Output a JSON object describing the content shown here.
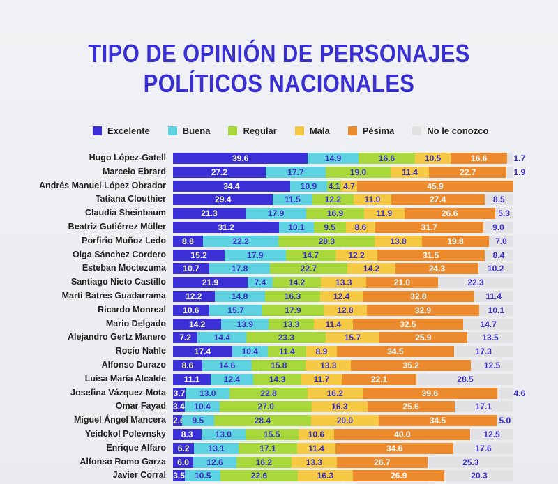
{
  "chart_data": {
    "type": "bar",
    "orientation": "horizontal-stacked-100",
    "title": [
      "TIPO DE OPINIÓN DE PERSONAJES",
      "POLÍTICOS NACIONALES"
    ],
    "legend": [
      "Excelente",
      "Buena",
      "Regular",
      "Mala",
      "Pésima",
      "No le conozco"
    ],
    "legend_position": "top",
    "colors": [
      "#3b2fd6",
      "#5fd2e2",
      "#a9d83c",
      "#f6c944",
      "#ec8a2e",
      "#e2e2e4"
    ],
    "label_colors": [
      "#ffffff",
      "#3a30c0",
      "#3a30c0",
      "#3a30c0",
      "#ffffff",
      "#3a30c0"
    ],
    "xlim": [
      0,
      100
    ],
    "categories": [
      "Hugo López-Gatell",
      "Marcelo Ebrard",
      "Andrés Manuel López Obrador",
      "Tatiana Clouthier",
      "Claudia Sheinbaum",
      "Beatriz Gutiérrez Müller",
      "Porfirio Muñoz Ledo",
      "Olga Sánchez Cordero",
      "Esteban Moctezuma",
      "Santiago Nieto Castillo",
      "Martí Batres Guadarrama",
      "Ricardo Monreal",
      "Mario Delgado",
      "Alejandro Gertz Manero",
      "Rocío Nahle",
      "Alfonso Durazo",
      "Luisa María Alcalde",
      "Josefina Vázquez Mota",
      "Omar Fayad",
      "Miguel Ángel Mancera",
      "Yeidckol Polevnsky",
      "Enrique Alfaro",
      "Alfonso Romo Garza",
      "Javier Corral"
    ],
    "values": [
      [
        39.6,
        14.9,
        16.6,
        10.5,
        16.6,
        1.7
      ],
      [
        27.2,
        17.7,
        19.0,
        11.4,
        22.7,
        1.9
      ],
      [
        34.4,
        10.9,
        4.1,
        4.7,
        45.9,
        0
      ],
      [
        29.4,
        11.5,
        12.2,
        11.0,
        27.4,
        8.5
      ],
      [
        21.3,
        17.9,
        16.9,
        11.9,
        26.6,
        5.3
      ],
      [
        31.2,
        10.1,
        9.5,
        8.6,
        31.7,
        9.0
      ],
      [
        8.8,
        22.2,
        28.3,
        13.8,
        19.8,
        7.0
      ],
      [
        15.2,
        17.9,
        14.7,
        12.2,
        31.5,
        8.4
      ],
      [
        10.7,
        17.8,
        22.7,
        14.2,
        24.3,
        10.2
      ],
      [
        21.9,
        7.4,
        14.2,
        13.3,
        21.0,
        22.3
      ],
      [
        12.2,
        14.8,
        16.3,
        12.4,
        32.8,
        11.4
      ],
      [
        10.6,
        15.7,
        17.9,
        12.8,
        32.9,
        10.1
      ],
      [
        14.2,
        13.9,
        13.3,
        11.4,
        32.5,
        14.7
      ],
      [
        7.2,
        14.4,
        23.3,
        15.7,
        25.9,
        13.5
      ],
      [
        17.4,
        10.4,
        11.4,
        8.9,
        34.5,
        17.3
      ],
      [
        8.6,
        14.6,
        15.8,
        13.3,
        35.2,
        12.5
      ],
      [
        11.1,
        12.4,
        14.3,
        11.7,
        22.1,
        28.5
      ],
      [
        3.7,
        13.0,
        22.8,
        16.2,
        39.6,
        4.6
      ],
      [
        3.4,
        10.4,
        27.0,
        16.3,
        25.6,
        17.1
      ],
      [
        2.6,
        9.5,
        28.4,
        20.0,
        34.5,
        5.0
      ],
      [
        8.3,
        13.0,
        15.5,
        10.6,
        40.0,
        12.5
      ],
      [
        6.2,
        13.1,
        17.1,
        11.4,
        34.6,
        17.6
      ],
      [
        6.0,
        12.6,
        16.2,
        13.3,
        26.7,
        25.3
      ],
      [
        3.5,
        10.5,
        22.6,
        16.3,
        26.9,
        20.3
      ]
    ]
  }
}
